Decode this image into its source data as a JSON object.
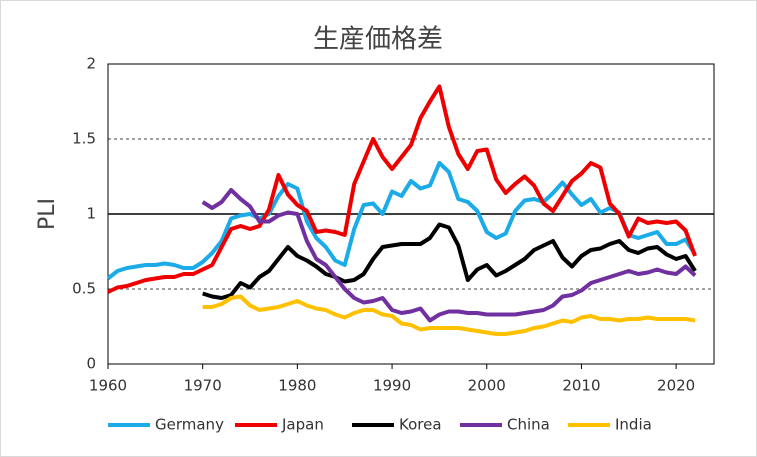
{
  "chart_data": {
    "type": "line",
    "title": "生産価格差",
    "y_label": "PLI",
    "x": [
      1960,
      1961,
      1962,
      1963,
      1964,
      1965,
      1966,
      1967,
      1968,
      1969,
      1970,
      1971,
      1972,
      1973,
      1974,
      1975,
      1976,
      1977,
      1978,
      1979,
      1980,
      1981,
      1982,
      1983,
      1984,
      1985,
      1986,
      1987,
      1988,
      1989,
      1990,
      1991,
      1992,
      1993,
      1994,
      1995,
      1996,
      1997,
      1998,
      1999,
      2000,
      2001,
      2002,
      2003,
      2004,
      2005,
      2006,
      2007,
      2008,
      2009,
      2010,
      2011,
      2012,
      2013,
      2014,
      2015,
      2016,
      2017,
      2018,
      2019,
      2020,
      2021,
      2022
    ],
    "series": [
      {
        "name": "Germany",
        "color": "#1aabe8",
        "values": [
          0.57,
          0.62,
          0.64,
          0.65,
          0.66,
          0.66,
          0.67,
          0.66,
          0.64,
          0.64,
          0.68,
          0.74,
          0.82,
          0.97,
          0.99,
          1.0,
          0.97,
          1.0,
          1.12,
          1.2,
          1.17,
          0.95,
          0.84,
          0.78,
          0.69,
          0.66,
          0.9,
          1.06,
          1.07,
          1.0,
          1.15,
          1.12,
          1.22,
          1.17,
          1.19,
          1.34,
          1.28,
          1.1,
          1.08,
          1.02,
          0.88,
          0.84,
          0.87,
          1.02,
          1.09,
          1.1,
          1.08,
          1.14,
          1.21,
          1.13,
          1.06,
          1.1,
          1.01,
          1.04,
          1.01,
          0.86,
          0.84,
          0.86,
          0.88,
          0.8,
          0.8,
          0.83,
          0.73
        ]
      },
      {
        "name": "Japan",
        "color": "#ee0000",
        "values": [
          0.48,
          0.51,
          0.52,
          0.54,
          0.56,
          0.57,
          0.58,
          0.58,
          0.6,
          0.6,
          0.63,
          0.66,
          0.78,
          0.9,
          0.92,
          0.9,
          0.92,
          1.03,
          1.26,
          1.13,
          1.06,
          1.02,
          0.88,
          0.89,
          0.88,
          0.86,
          1.2,
          1.35,
          1.5,
          1.38,
          1.3,
          1.38,
          1.46,
          1.64,
          1.75,
          1.85,
          1.58,
          1.4,
          1.3,
          1.42,
          1.43,
          1.23,
          1.14,
          1.2,
          1.25,
          1.19,
          1.07,
          1.02,
          1.12,
          1.22,
          1.27,
          1.34,
          1.31,
          1.07,
          1.0,
          0.85,
          0.97,
          0.94,
          0.95,
          0.94,
          0.95,
          0.89,
          0.72
        ]
      },
      {
        "name": "Korea",
        "color": "#000000",
        "values": [
          null,
          null,
          null,
          null,
          null,
          null,
          null,
          null,
          null,
          null,
          0.47,
          0.45,
          0.44,
          0.46,
          0.54,
          0.51,
          0.58,
          0.62,
          0.7,
          0.78,
          0.72,
          0.69,
          0.65,
          0.6,
          0.58,
          0.55,
          0.56,
          0.6,
          0.7,
          0.78,
          0.79,
          0.8,
          0.8,
          0.8,
          0.84,
          0.93,
          0.91,
          0.79,
          0.56,
          0.63,
          0.66,
          0.59,
          0.62,
          0.66,
          0.7,
          0.76,
          0.79,
          0.82,
          0.71,
          0.65,
          0.72,
          0.76,
          0.77,
          0.8,
          0.82,
          0.76,
          0.74,
          0.77,
          0.78,
          0.73,
          0.7,
          0.72,
          0.62
        ]
      },
      {
        "name": "China",
        "color": "#7030a0",
        "values": [
          null,
          null,
          null,
          null,
          null,
          null,
          null,
          null,
          null,
          null,
          1.08,
          1.04,
          1.08,
          1.16,
          1.1,
          1.05,
          0.95,
          0.95,
          0.99,
          1.01,
          1.0,
          0.82,
          0.7,
          0.66,
          0.58,
          0.5,
          0.44,
          0.41,
          0.42,
          0.44,
          0.36,
          0.34,
          0.35,
          0.37,
          0.29,
          0.33,
          0.35,
          0.35,
          0.34,
          0.34,
          0.33,
          0.33,
          0.33,
          0.33,
          0.34,
          0.35,
          0.36,
          0.39,
          0.45,
          0.46,
          0.49,
          0.54,
          0.56,
          0.58,
          0.6,
          0.62,
          0.6,
          0.61,
          0.63,
          0.61,
          0.6,
          0.65,
          0.59
        ]
      },
      {
        "name": "India",
        "color": "#ffc000",
        "values": [
          null,
          null,
          null,
          null,
          null,
          null,
          null,
          null,
          null,
          null,
          0.38,
          0.38,
          0.4,
          0.44,
          0.45,
          0.39,
          0.36,
          0.37,
          0.38,
          0.4,
          0.42,
          0.39,
          0.37,
          0.36,
          0.33,
          0.31,
          0.34,
          0.36,
          0.36,
          0.33,
          0.32,
          0.27,
          0.26,
          0.23,
          0.24,
          0.24,
          0.24,
          0.24,
          0.23,
          0.22,
          0.21,
          0.2,
          0.2,
          0.21,
          0.22,
          0.24,
          0.25,
          0.27,
          0.29,
          0.28,
          0.31,
          0.32,
          0.3,
          0.3,
          0.29,
          0.3,
          0.3,
          0.31,
          0.3,
          0.3,
          0.3,
          0.3,
          0.29
        ]
      }
    ],
    "xlim": [
      1960,
      2024
    ],
    "xticks": [
      1960,
      1970,
      1980,
      1990,
      2000,
      2010,
      2020
    ],
    "ylim": [
      0,
      2
    ],
    "yticks": [
      0,
      0.5,
      1,
      1.5,
      2
    ],
    "grid": true,
    "hline": 1,
    "legend": "bottom"
  }
}
